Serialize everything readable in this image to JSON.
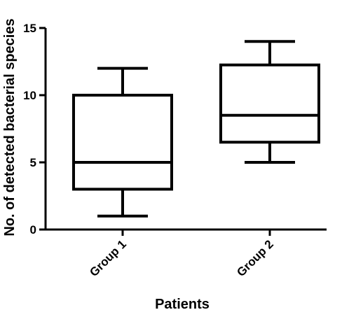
{
  "chart_data": {
    "type": "box",
    "title": "",
    "xlabel": "Patients",
    "ylabel": "No. of detected bacterial species",
    "ylim": [
      0,
      15
    ],
    "yticks": [
      0,
      5,
      10,
      15
    ],
    "categories": [
      "Group 1",
      "Group 2"
    ],
    "boxes": [
      {
        "category": "Group 1",
        "min": 1,
        "q1": 3,
        "median": 5,
        "q3": 10,
        "max": 12
      },
      {
        "category": "Group 2",
        "min": 5,
        "q1": 6.5,
        "median": 8.5,
        "q3": 12.25,
        "max": 14
      }
    ],
    "grid": false,
    "legend": "none",
    "colors": {
      "stroke": "#000000",
      "background": "#ffffff"
    }
  }
}
